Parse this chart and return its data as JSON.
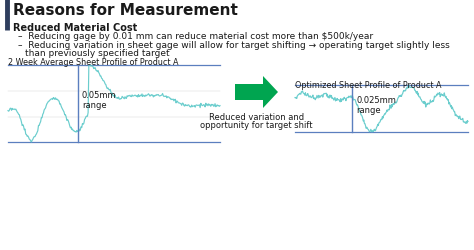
{
  "title": "Reasons for Measurement",
  "title_bar_color": "#2F3E5E",
  "bg_color": "#FFFFFF",
  "bold_bullet": "Reduced Material Cost",
  "bullet1": "Reducing gage by 0.01 mm can reduce material cost more than $500k/year",
  "bullet2_line1": "Reducing variation in sheet gage will allow for target shifting → operating target slightly less",
  "bullet2_line2": "than previously specified target",
  "chart1_title": "2 Week Average Sheet Profile of Product A",
  "chart2_title": "Optimized Sheet Profile of Product A",
  "range1_label": "0.05mm\nrange",
  "range2_label": "0.025mm\nrange",
  "arrow_label_1": "Reduced variation and",
  "arrow_label_2": "opportunity for target shift",
  "teal_color": "#5BC8C8",
  "blue_line_color": "#5B7FBF",
  "arrow_color": "#00A550",
  "text_color": "#1A1A1A",
  "gray_line": "#BBBBBB",
  "title_fontsize": 11,
  "bold_bullet_fontsize": 7,
  "bullet_fontsize": 6.5,
  "chart_title_fontsize": 5.8,
  "label_fontsize": 6,
  "arrow_label_fontsize": 6
}
